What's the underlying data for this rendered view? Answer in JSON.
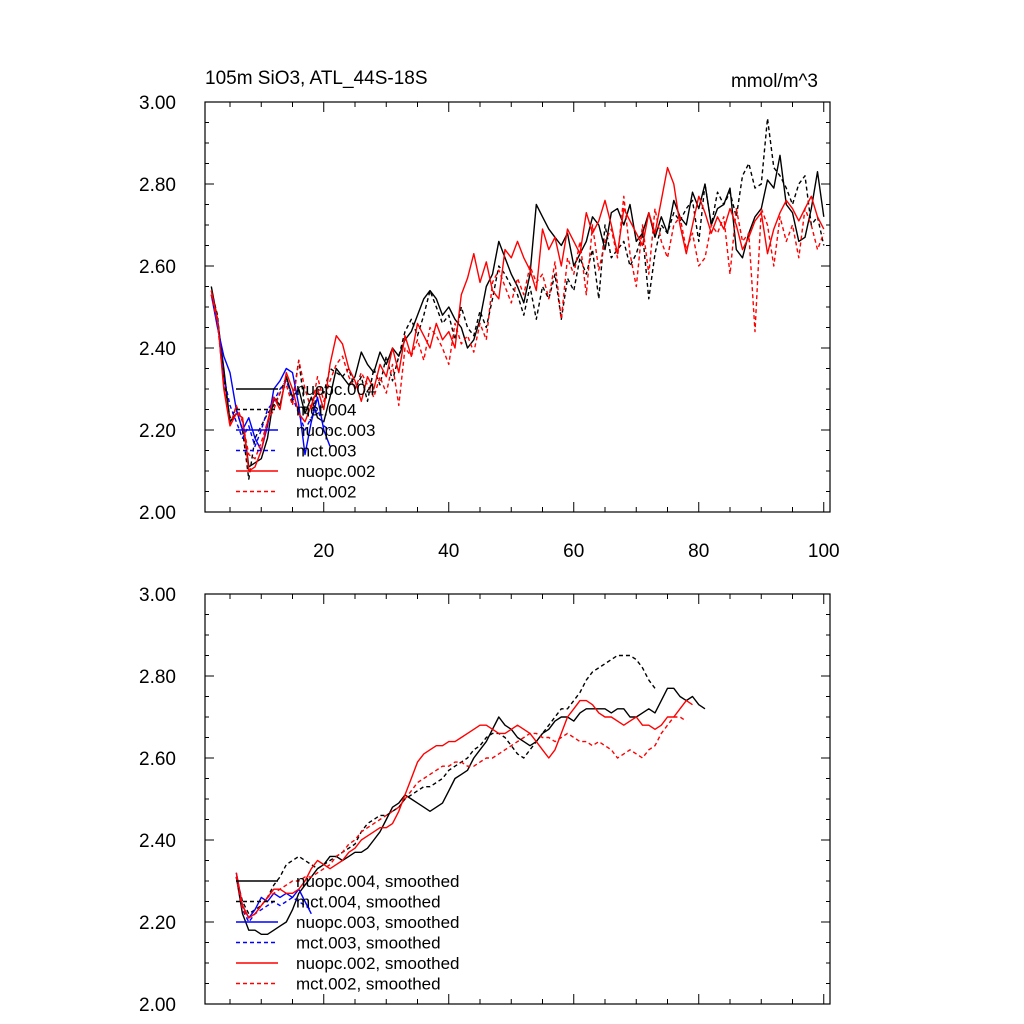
{
  "chart_data": [
    {
      "type": "line",
      "title": "105m SiO3, ATL_44S-18S",
      "units": "mmol/m^3",
      "xlim": [
        1,
        101
      ],
      "ylim": [
        2.0,
        3.0
      ],
      "xticks": [
        20,
        40,
        60,
        80,
        100
      ],
      "xtick_labels": [
        "20",
        "40",
        "60",
        "80",
        "100"
      ],
      "yticks": [
        2.0,
        2.2,
        2.4,
        2.6,
        2.8,
        3.0
      ],
      "ytick_labels": [
        "2.00",
        "2.20",
        "2.40",
        "2.60",
        "2.80",
        "3.00"
      ],
      "legend_position": "lower-left",
      "series": [
        {
          "name": "nuopc.004",
          "color": "#000000",
          "dash": "solid",
          "x_start": 2,
          "values": [
            2.55,
            2.47,
            2.35,
            2.22,
            2.24,
            2.23,
            2.11,
            2.12,
            2.13,
            2.18,
            2.28,
            2.26,
            2.33,
            2.28,
            2.3,
            2.24,
            2.28,
            2.23,
            2.22,
            2.28,
            2.35,
            2.33,
            2.31,
            2.33,
            2.39,
            2.36,
            2.34,
            2.39,
            2.36,
            2.4,
            2.38,
            2.42,
            2.44,
            2.48,
            2.52,
            2.54,
            2.52,
            2.48,
            2.5,
            2.47,
            2.45,
            2.4,
            2.42,
            2.47,
            2.55,
            2.58,
            2.66,
            2.62,
            2.58,
            2.55,
            2.51,
            2.58,
            2.75,
            2.72,
            2.69,
            2.67,
            2.65,
            2.68,
            2.6,
            2.63,
            2.66,
            2.72,
            2.7,
            2.64,
            2.73,
            2.74,
            2.7,
            2.75,
            2.66,
            2.68,
            2.73,
            2.67,
            2.72,
            2.68,
            2.76,
            2.72,
            2.7,
            2.78,
            2.74,
            2.8,
            2.7,
            2.74,
            2.75,
            2.79,
            2.64,
            2.62,
            2.68,
            2.72,
            2.74,
            2.81,
            2.79,
            2.87,
            2.75,
            2.73,
            2.66,
            2.67,
            2.74,
            2.83,
            2.72
          ]
        },
        {
          "name": "mct.004",
          "color": "#000000",
          "dash": "dash",
          "x_start": 2,
          "values": [
            2.54,
            2.48,
            2.32,
            2.23,
            2.25,
            2.2,
            2.08,
            2.18,
            2.21,
            2.24,
            2.26,
            2.29,
            2.33,
            2.27,
            2.37,
            2.25,
            2.22,
            2.3,
            2.29,
            2.35,
            2.34,
            2.33,
            2.35,
            2.3,
            2.33,
            2.27,
            2.35,
            2.31,
            2.38,
            2.32,
            2.38,
            2.44,
            2.47,
            2.43,
            2.48,
            2.54,
            2.5,
            2.46,
            2.48,
            2.42,
            2.5,
            2.45,
            2.43,
            2.49,
            2.45,
            2.52,
            2.6,
            2.58,
            2.55,
            2.53,
            2.48,
            2.55,
            2.47,
            2.55,
            2.52,
            2.58,
            2.47,
            2.57,
            2.54,
            2.62,
            2.58,
            2.64,
            2.52,
            2.7,
            2.62,
            2.64,
            2.66,
            2.6,
            2.63,
            2.68,
            2.52,
            2.63,
            2.7,
            2.68,
            2.73,
            2.71,
            2.74,
            2.76,
            2.66,
            2.8,
            2.7,
            2.78,
            2.75,
            2.78,
            2.72,
            2.82,
            2.85,
            2.79,
            2.8,
            2.96,
            2.84,
            2.82,
            2.79,
            2.75,
            2.8,
            2.82,
            2.7,
            2.72,
            2.65
          ]
        },
        {
          "name": "nuopc.003",
          "color": "#0000ff",
          "dash": "solid",
          "x_start": 2,
          "values": [
            2.53,
            2.45,
            2.38,
            2.34,
            2.25,
            2.2,
            2.23,
            2.18,
            2.15,
            2.21,
            2.3,
            2.32,
            2.35,
            2.34,
            2.26,
            2.14,
            2.22,
            2.28,
            2.2,
            2.16
          ]
        },
        {
          "name": "mct.003",
          "color": "#0000ff",
          "dash": "dash",
          "x_start": 2,
          "values": [
            2.53,
            2.47,
            2.33,
            2.26,
            2.22,
            2.18,
            2.21,
            2.16,
            2.2,
            2.25,
            2.27,
            2.3,
            2.32,
            2.28,
            2.24,
            2.2,
            2.23,
            2.25,
            2.21,
            2.2
          ]
        },
        {
          "name": "nuopc.002",
          "color": "#ff0000",
          "dash": "solid",
          "x_start": 2,
          "values": [
            2.54,
            2.47,
            2.3,
            2.21,
            2.24,
            2.23,
            2.1,
            2.11,
            2.15,
            2.22,
            2.28,
            2.25,
            2.34,
            2.3,
            2.24,
            2.22,
            2.26,
            2.3,
            2.25,
            2.36,
            2.43,
            2.41,
            2.35,
            2.32,
            2.27,
            2.33,
            2.3,
            2.36,
            2.33,
            2.4,
            2.34,
            2.43,
            2.38,
            2.46,
            2.43,
            2.4,
            2.46,
            2.42,
            2.44,
            2.4,
            2.53,
            2.57,
            2.63,
            2.56,
            2.61,
            2.54,
            2.52,
            2.64,
            2.62,
            2.66,
            2.62,
            2.59,
            2.54,
            2.69,
            2.64,
            2.67,
            2.6,
            2.69,
            2.66,
            2.63,
            2.73,
            2.68,
            2.71,
            2.76,
            2.7,
            2.63,
            2.74,
            2.71,
            2.68,
            2.65,
            2.73,
            2.68,
            2.76,
            2.84,
            2.8,
            2.7,
            2.63,
            2.7,
            2.77,
            2.73,
            2.68,
            2.72,
            2.69,
            2.74,
            2.7,
            2.64,
            2.67,
            2.71,
            2.73,
            2.63,
            2.69,
            2.73,
            2.76,
            2.74,
            2.71,
            2.74,
            2.77,
            2.72,
            2.69
          ]
        },
        {
          "name": "mct.002",
          "color": "#ff0000",
          "dash": "dash",
          "x_start": 2,
          "values": [
            2.53,
            2.46,
            2.31,
            2.21,
            2.26,
            2.22,
            2.14,
            2.13,
            2.17,
            2.22,
            2.25,
            2.29,
            2.31,
            2.26,
            2.37,
            2.3,
            2.25,
            2.33,
            2.27,
            2.32,
            2.36,
            2.38,
            2.33,
            2.3,
            2.34,
            2.31,
            2.28,
            2.33,
            2.29,
            2.36,
            2.26,
            2.4,
            2.38,
            2.42,
            2.37,
            2.45,
            2.43,
            2.4,
            2.36,
            2.46,
            2.41,
            2.43,
            2.39,
            2.46,
            2.42,
            2.56,
            2.59,
            2.55,
            2.51,
            2.57,
            2.53,
            2.6,
            2.56,
            2.58,
            2.52,
            2.61,
            2.47,
            2.62,
            2.58,
            2.66,
            2.53,
            2.7,
            2.59,
            2.66,
            2.69,
            2.62,
            2.77,
            2.63,
            2.55,
            2.7,
            2.58,
            2.74,
            2.66,
            2.62,
            2.7,
            2.72,
            2.64,
            2.68,
            2.6,
            2.62,
            2.7,
            2.68,
            2.72,
            2.58,
            2.74,
            2.66,
            2.68,
            2.44,
            2.74,
            2.7,
            2.6,
            2.72,
            2.66,
            2.7,
            2.62,
            2.74,
            2.7,
            2.64,
            2.68
          ]
        }
      ]
    },
    {
      "type": "line",
      "title": "",
      "xlim": [
        1,
        101
      ],
      "ylim": [
        2.0,
        3.0
      ],
      "xticks": [
        20,
        40,
        60,
        80,
        100
      ],
      "yticks": [
        2.0,
        2.2,
        2.4,
        2.6,
        2.8,
        3.0
      ],
      "ytick_labels": [
        "2.00",
        "2.20",
        "2.40",
        "2.60",
        "2.80",
        "3.00"
      ],
      "legend_position": "lower-left",
      "series": [
        {
          "name": "nuopc.004, smoothed",
          "color": "#000000",
          "dash": "solid",
          "x_start": 6,
          "values": [
            2.31,
            2.22,
            2.18,
            2.18,
            2.17,
            2.17,
            2.18,
            2.19,
            2.2,
            2.23,
            2.27,
            2.29,
            2.31,
            2.33,
            2.34,
            2.36,
            2.36,
            2.35,
            2.36,
            2.37,
            2.37,
            2.38,
            2.4,
            2.42,
            2.45,
            2.48,
            2.49,
            2.51,
            2.5,
            2.49,
            2.48,
            2.47,
            2.48,
            2.49,
            2.52,
            2.55,
            2.56,
            2.57,
            2.6,
            2.62,
            2.64,
            2.67,
            2.7,
            2.68,
            2.67,
            2.65,
            2.64,
            2.63,
            2.64,
            2.66,
            2.67,
            2.69,
            2.7,
            2.7,
            2.69,
            2.71,
            2.72,
            2.72,
            2.72,
            2.72,
            2.71,
            2.72,
            2.72,
            2.7,
            2.7,
            2.71,
            2.72,
            2.71,
            2.74,
            2.77,
            2.77,
            2.75,
            2.74,
            2.75,
            2.73,
            2.72
          ]
        },
        {
          "name": "mct.004, smoothed",
          "color": "#000000",
          "dash": "dash",
          "x_start": 6,
          "values": [
            2.31,
            2.25,
            2.22,
            2.23,
            2.24,
            2.26,
            2.29,
            2.31,
            2.34,
            2.35,
            2.36,
            2.35,
            2.34,
            2.33,
            2.34,
            2.35,
            2.36,
            2.37,
            2.38,
            2.39,
            2.42,
            2.44,
            2.45,
            2.46,
            2.46,
            2.47,
            2.48,
            2.5,
            2.51,
            2.52,
            2.53,
            2.53,
            2.54,
            2.55,
            2.57,
            2.58,
            2.59,
            2.6,
            2.62,
            2.63,
            2.65,
            2.66,
            2.66,
            2.65,
            2.63,
            2.61,
            2.6,
            2.62,
            2.64,
            2.66,
            2.68,
            2.7,
            2.72,
            2.72,
            2.74,
            2.76,
            2.79,
            2.81,
            2.82,
            2.83,
            2.84,
            2.85,
            2.85,
            2.85,
            2.84,
            2.82,
            2.79,
            2.77
          ]
        },
        {
          "name": "nuopc.003, smoothed",
          "color": "#0000ff",
          "dash": "solid",
          "x_start": 6,
          "values": [
            2.32,
            2.24,
            2.21,
            2.23,
            2.26,
            2.25,
            2.27,
            2.26,
            2.27,
            2.26,
            2.28,
            2.25,
            2.22
          ]
        },
        {
          "name": "mct.003, smoothed",
          "color": "#0000ff",
          "dash": "dash",
          "x_start": 6,
          "values": [
            2.31,
            2.23,
            2.2,
            2.22,
            2.23,
            2.24,
            2.25,
            2.24,
            2.25,
            2.26,
            2.25,
            2.24,
            2.23
          ]
        },
        {
          "name": "nuopc.002, smoothed",
          "color": "#ff0000",
          "dash": "solid",
          "x_start": 6,
          "values": [
            2.32,
            2.24,
            2.21,
            2.22,
            2.24,
            2.26,
            2.28,
            2.28,
            2.27,
            2.27,
            2.28,
            2.3,
            2.33,
            2.35,
            2.34,
            2.33,
            2.34,
            2.35,
            2.37,
            2.38,
            2.4,
            2.41,
            2.42,
            2.43,
            2.43,
            2.44,
            2.47,
            2.51,
            2.55,
            2.59,
            2.61,
            2.62,
            2.63,
            2.63,
            2.64,
            2.64,
            2.65,
            2.66,
            2.67,
            2.68,
            2.68,
            2.67,
            2.66,
            2.66,
            2.67,
            2.68,
            2.67,
            2.66,
            2.64,
            2.62,
            2.6,
            2.62,
            2.66,
            2.7,
            2.72,
            2.74,
            2.74,
            2.73,
            2.71,
            2.7,
            2.7,
            2.69,
            2.68,
            2.69,
            2.7,
            2.68,
            2.68,
            2.67,
            2.68,
            2.7,
            2.7,
            2.72,
            2.74,
            2.73
          ]
        },
        {
          "name": "mct.002, smoothed",
          "color": "#ff0000",
          "dash": "dash",
          "x_start": 6,
          "values": [
            2.31,
            2.23,
            2.21,
            2.22,
            2.24,
            2.26,
            2.27,
            2.28,
            2.29,
            2.3,
            2.3,
            2.31,
            2.31,
            2.32,
            2.33,
            2.34,
            2.36,
            2.37,
            2.39,
            2.4,
            2.42,
            2.43,
            2.44,
            2.45,
            2.46,
            2.47,
            2.48,
            2.5,
            2.52,
            2.54,
            2.55,
            2.56,
            2.57,
            2.58,
            2.58,
            2.59,
            2.59,
            2.58,
            2.58,
            2.59,
            2.6,
            2.6,
            2.61,
            2.62,
            2.63,
            2.64,
            2.65,
            2.66,
            2.66,
            2.65,
            2.65,
            2.64,
            2.65,
            2.66,
            2.65,
            2.64,
            2.64,
            2.63,
            2.64,
            2.63,
            2.62,
            2.6,
            2.61,
            2.62,
            2.61,
            2.6,
            2.62,
            2.63,
            2.66,
            2.68,
            2.7,
            2.7,
            2.69
          ]
        }
      ]
    }
  ]
}
